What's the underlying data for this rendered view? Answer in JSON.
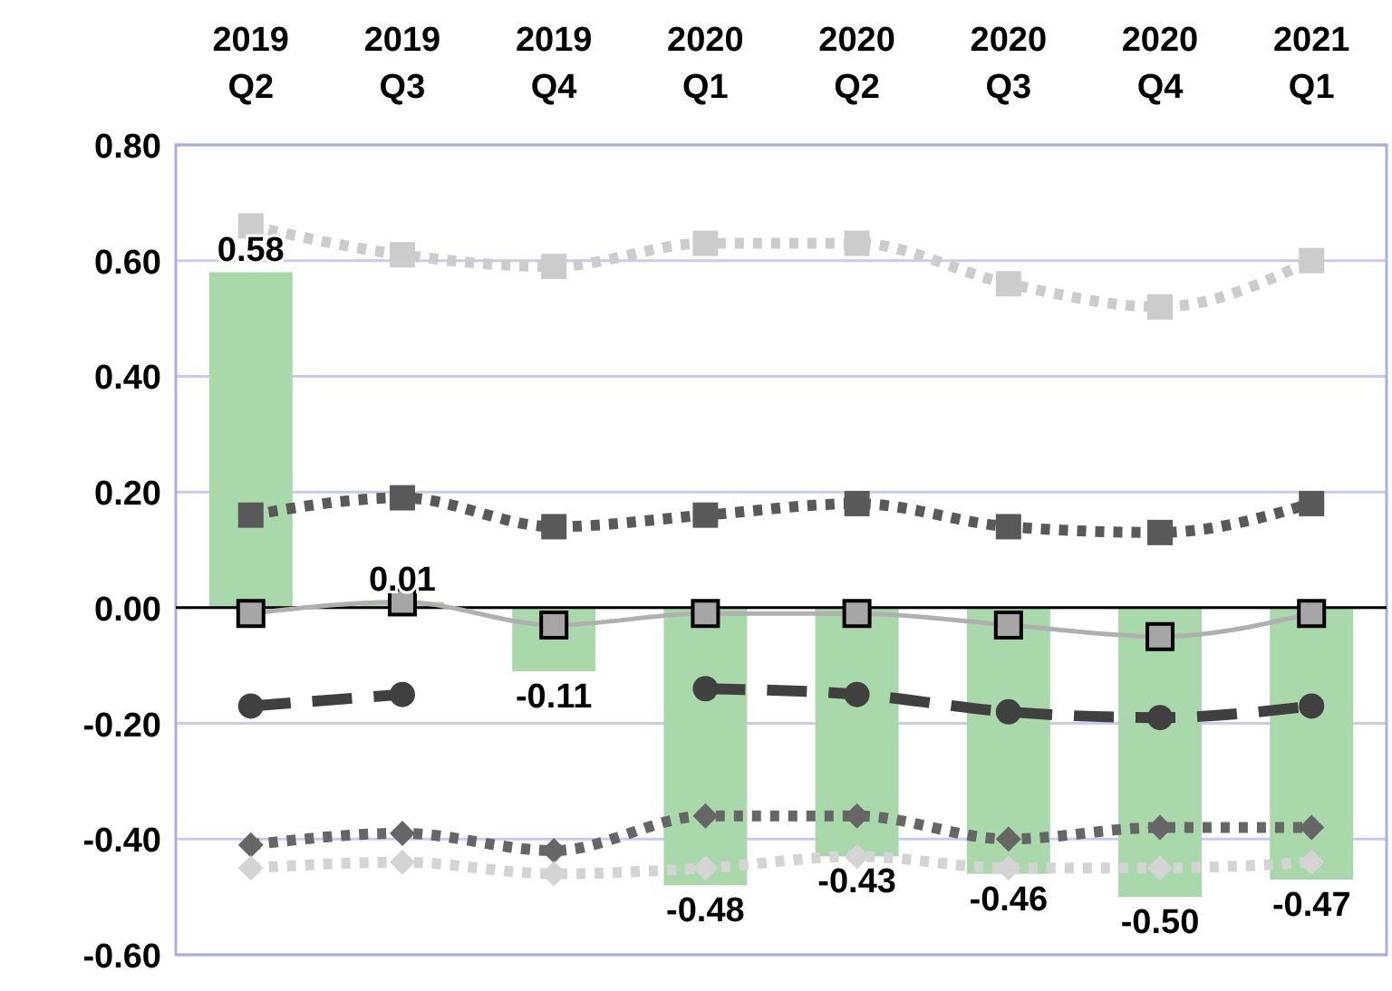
{
  "chart_data": {
    "type": "bar",
    "categories": [
      "2019 Q2",
      "2019 Q3",
      "2019 Q4",
      "2020 Q1",
      "2020 Q2",
      "2020 Q3",
      "2020 Q4",
      "2021 Q1"
    ],
    "series": [
      {
        "color": "#a9d8aa",
        "values": [
          0.58,
          0.01,
          -0.11,
          -0.48,
          -0.43,
          -0.46,
          -0.5,
          -0.47
        ],
        "value_labels": [
          "0.58",
          "0.01",
          "-0.11",
          "-0.48",
          "-0.43",
          "-0.46",
          "-0.50",
          "-0.47"
        ]
      },
      {
        "type": "line",
        "color": "#cccccc",
        "marker": "square",
        "line_style": "dotted",
        "values": [
          0.66,
          0.61,
          0.59,
          0.63,
          0.63,
          0.56,
          0.52,
          0.6
        ]
      },
      {
        "type": "line",
        "color": "#595959",
        "marker": "square",
        "line_style": "dotted",
        "values": [
          0.16,
          0.19,
          0.14,
          0.16,
          0.18,
          0.14,
          0.13,
          0.18
        ]
      },
      {
        "type": "line",
        "color": "#b0b0b0",
        "marker": "square",
        "line_style": "solid",
        "values": [
          -0.01,
          0.01,
          -0.03,
          -0.01,
          -0.01,
          -0.03,
          -0.05,
          -0.01
        ]
      },
      {
        "type": "line",
        "color": "#404040",
        "marker": "circle",
        "line_style": "dashed",
        "values": [
          -0.17,
          -0.15,
          null,
          -0.14,
          -0.15,
          -0.18,
          -0.19,
          -0.17
        ]
      },
      {
        "type": "line",
        "color": "#666666",
        "marker": "diamond",
        "line_style": "dotted",
        "values": [
          -0.41,
          -0.39,
          -0.42,
          -0.36,
          -0.36,
          -0.4,
          -0.38,
          -0.38
        ]
      },
      {
        "type": "line",
        "color": "#d4d4d4",
        "marker": "diamond",
        "line_style": "dotted",
        "values": [
          -0.45,
          -0.44,
          -0.46,
          -0.45,
          -0.43,
          -0.45,
          -0.45,
          -0.44
        ]
      }
    ],
    "ylim": [
      -0.6,
      0.8
    ],
    "yticks": [
      {
        "value": -0.6,
        "label": "-0.60"
      },
      {
        "value": -0.4,
        "label": "-0.40"
      },
      {
        "value": -0.2,
        "label": "-0.20"
      },
      {
        "value": 0,
        "label": "0.00"
      },
      {
        "value": 0.2,
        "label": "0.20"
      },
      {
        "value": 0.4,
        "label": "0.40"
      },
      {
        "value": 0.6,
        "label": "0.60"
      },
      {
        "value": 0.8,
        "label": "0.80"
      }
    ],
    "grid": "y"
  }
}
